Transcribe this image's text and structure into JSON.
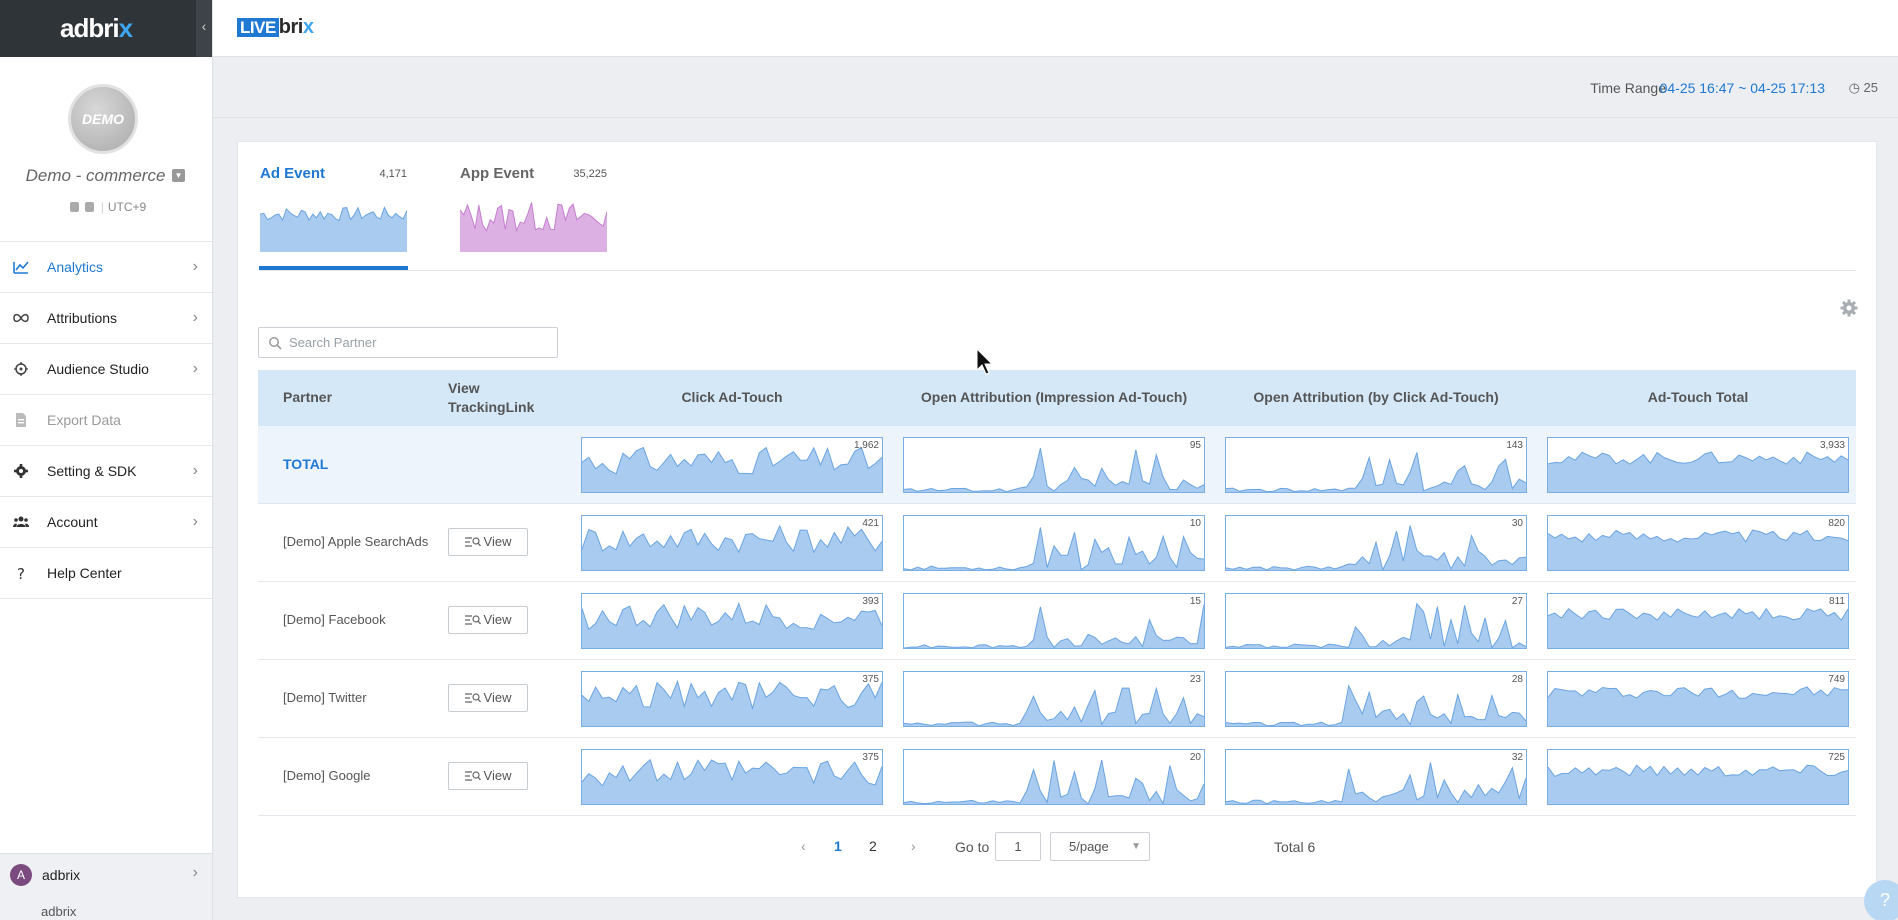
{
  "sidebar": {
    "logo": {
      "main": "adbri",
      "accent": "x"
    },
    "collapse_icon": "‹",
    "avatar_text": "DEMO",
    "app_name": "Demo - commerce",
    "dropdown_icon": "▼",
    "timezone": "UTC+9",
    "nav": [
      {
        "label": "Analytics",
        "icon": "analytics-icon",
        "state": "active"
      },
      {
        "label": "Attributions",
        "icon": "attributions-icon",
        "state": "normal"
      },
      {
        "label": "Audience Studio",
        "icon": "target-icon",
        "state": "normal"
      },
      {
        "label": "Export Data",
        "icon": "export-icon",
        "state": "disabled"
      },
      {
        "label": "Setting & SDK",
        "icon": "gear-icon",
        "state": "normal"
      },
      {
        "label": "Account",
        "icon": "users-icon",
        "state": "normal"
      },
      {
        "label": "Help Center",
        "icon": "help-icon",
        "state": "normal"
      }
    ],
    "chevron": "›",
    "user": {
      "initial": "A",
      "name": "adbrix",
      "sub": "adbrix"
    }
  },
  "header": {
    "product": {
      "live": "LIVE",
      "brix": "bri",
      "x": "x"
    },
    "time_range_label": "Time Range",
    "time_range_value": "04-25 16:47 ~ 04-25 17:13",
    "refresh": "◷ 25"
  },
  "tabs": [
    {
      "label": "Ad Event",
      "count": "4,171",
      "color": "#a9cbf0",
      "stroke": "#6aa4e0"
    },
    {
      "label": "App Event",
      "count": "35,225",
      "color": "#ddb0e3",
      "stroke": "#c57dd0"
    }
  ],
  "search": {
    "placeholder": "Search Partner"
  },
  "table": {
    "headers": {
      "partner": "Partner",
      "view_line1": "View",
      "view_line2": "TrackingLink",
      "metrics": [
        "Click Ad-Touch",
        "Open Attribution (Impression Ad-Touch)",
        "Open Attribution (by Click Ad-Touch)",
        "Ad-Touch Total"
      ]
    },
    "view_label": "View",
    "rows": [
      {
        "partner": "TOTAL",
        "total": true,
        "values": [
          "1,962",
          "95",
          "143",
          "3,933"
        ]
      },
      {
        "partner": "[Demo] Apple SearchAds",
        "total": false,
        "values": [
          "421",
          "10",
          "30",
          "820"
        ]
      },
      {
        "partner": "[Demo] Facebook",
        "total": false,
        "values": [
          "393",
          "15",
          "27",
          "811"
        ]
      },
      {
        "partner": "[Demo] Twitter",
        "total": false,
        "values": [
          "375",
          "23",
          "28",
          "749"
        ]
      },
      {
        "partner": "[Demo] Google",
        "total": false,
        "values": [
          "375",
          "20",
          "32",
          "725"
        ]
      }
    ]
  },
  "pagination": {
    "prev": "‹",
    "pages": [
      "1",
      "2"
    ],
    "current": "1",
    "next": "›",
    "goto_label": "Go to",
    "goto_value": "1",
    "page_size": "5/page",
    "total": "Total 6"
  },
  "help_fab": "?",
  "colors": {
    "accent": "#1f79d3",
    "spark_fill": "#a9cbf0",
    "spark_stroke": "#6aa4e0"
  }
}
